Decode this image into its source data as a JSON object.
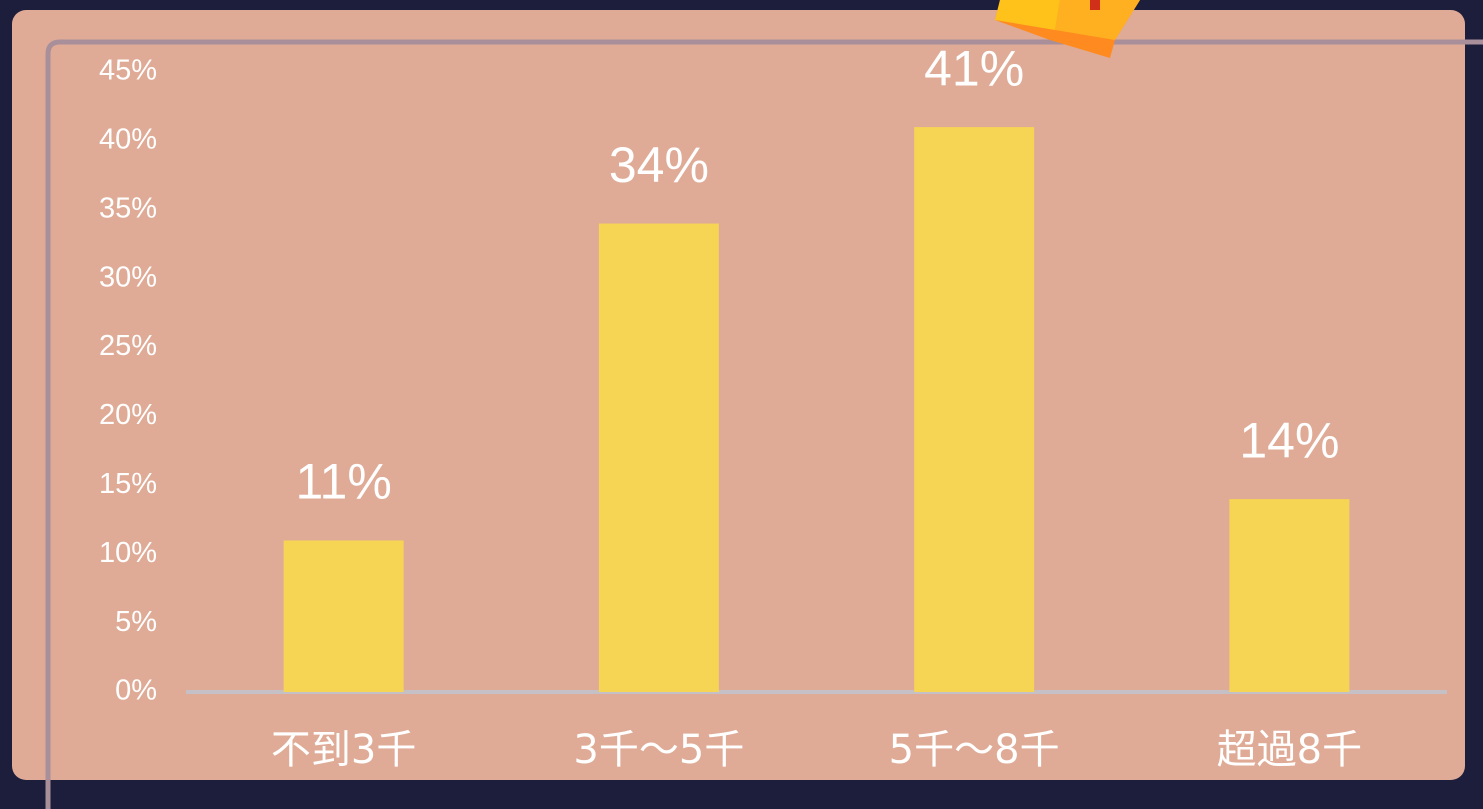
{
  "chart_data": {
    "type": "bar",
    "categories": [
      "不到3千",
      "3千～5千",
      "5千～8千",
      "超過8千"
    ],
    "values": [
      11,
      34,
      41,
      14
    ],
    "value_labels": [
      "11%",
      "34%",
      "41%",
      "14%"
    ],
    "color": "#f6d454",
    "ylim": [
      0,
      45
    ],
    "yticks": [
      {
        "value": 0,
        "label": "0%"
      },
      {
        "value": 5,
        "label": "5%"
      },
      {
        "value": 10,
        "label": "10%"
      },
      {
        "value": 15,
        "label": "15%"
      },
      {
        "value": 20,
        "label": "20%"
      },
      {
        "value": 25,
        "label": "25%"
      },
      {
        "value": 30,
        "label": "30%"
      },
      {
        "value": 35,
        "label": "35%"
      },
      {
        "value": 40,
        "label": "40%"
      },
      {
        "value": 45,
        "label": "45%"
      }
    ]
  }
}
